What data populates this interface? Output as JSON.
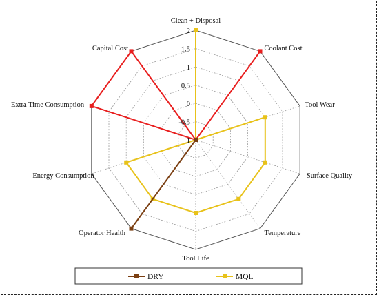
{
  "chart_data": {
    "type": "radar",
    "axes": [
      "Clean + Disposal",
      "Coolant Cost",
      "Tool Wear",
      "Surface Quality",
      "Temperature",
      "Tool Life",
      "Operator Health",
      "Energy Consumption",
      "Extra Time Consumption",
      "Capital Cost"
    ],
    "rlim": [
      -1,
      2
    ],
    "ticks": [
      "2",
      "1.5",
      "1",
      "0.5",
      "0",
      "-0.5",
      "-1"
    ],
    "tick_values": [
      2,
      1.5,
      1,
      0.5,
      0,
      -0.5,
      -1
    ],
    "grid": true,
    "legend_position": "bottom",
    "series": [
      {
        "name": "DRY",
        "values": [
          -1,
          -1,
          -1,
          -1,
          -1,
          -1,
          2,
          -1,
          -1,
          -1
        ],
        "color": "#7b3f12"
      },
      {
        "name": "MQL",
        "values": [
          2,
          -1,
          1,
          1,
          1,
          1,
          1,
          1,
          -1,
          -1
        ],
        "color": "#e8c21a"
      },
      {
        "name": "",
        "values": [
          -1,
          2,
          -1,
          -1,
          -1,
          -1,
          -1,
          -1,
          2,
          2
        ],
        "color": "#e81e1e"
      }
    ]
  }
}
